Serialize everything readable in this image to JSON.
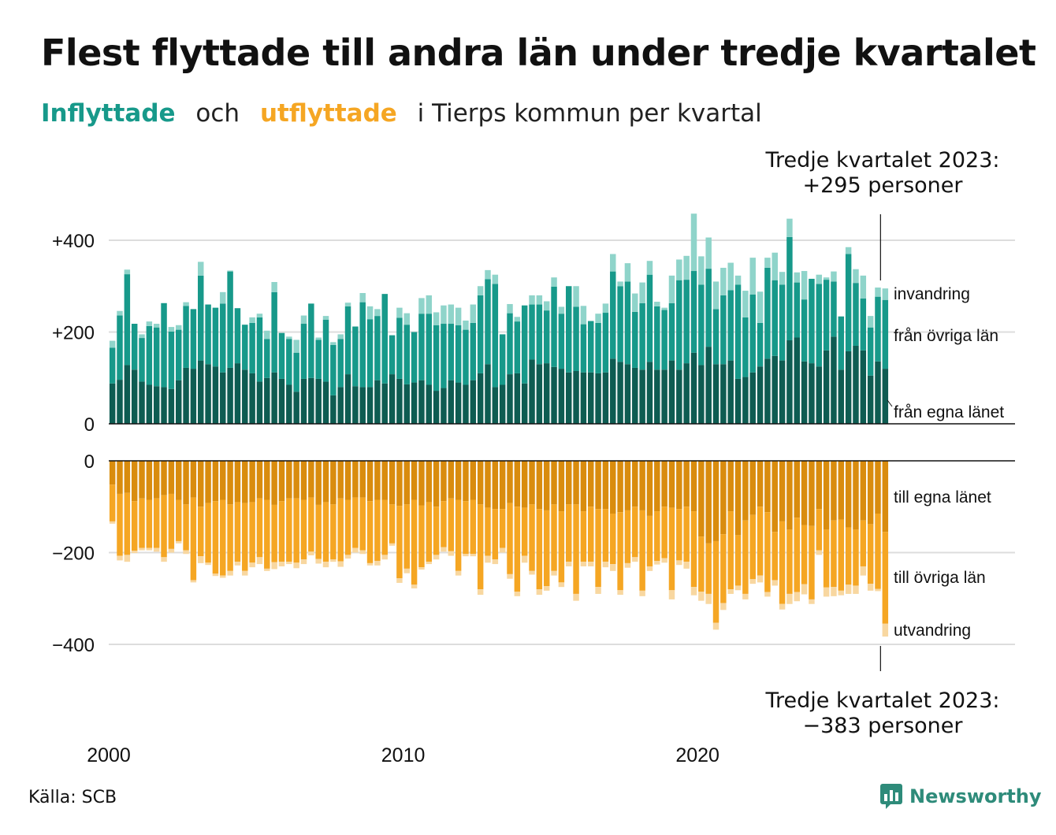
{
  "title": "Flest flyttade till andra län under tredje kvartalet",
  "subtitle": {
    "part1": "Inflyttade",
    "part2": "och",
    "part3": "utflyttade",
    "part4": "i Tierps kommun per kvartal"
  },
  "annotations": {
    "top_line1": "Tredje kvartalet 2023:",
    "top_line2": "+295 personer",
    "bottom_line1": "Tredje kvartalet 2023:",
    "bottom_line2": "−383 personer"
  },
  "source": "Källa: SCB",
  "logo_text": "Newsworthy",
  "colors": {
    "in_own": "#0e5c52",
    "in_other": "#17998a",
    "in_immig": "#8fd4ca",
    "out_own": "#d98c0e",
    "out_other": "#f5a623",
    "out_emig": "#f8d7a0",
    "inflyttade_text": "#17998a",
    "utflyttade_text": "#f5a623",
    "grid": "#dddddd",
    "logo": "#2e8b7a"
  },
  "chart_data": {
    "type": "bar",
    "stacked": true,
    "x_start": "2000 Q1",
    "x_end": "2023 Q3",
    "x_ticks": [
      "2000",
      "2010",
      "2020"
    ],
    "y_ticks_in": [
      "+400",
      "+200",
      "0"
    ],
    "y_ticks_out": [
      "0",
      "−200",
      "−400"
    ],
    "ylim_in": [
      0,
      480
    ],
    "ylim_out": [
      -420,
      0
    ],
    "series": [
      {
        "name": "från egna länet",
        "values": [
          88,
          96,
          128,
          118,
          92,
          85,
          82,
          80,
          76,
          95,
          122,
          120,
          138,
          130,
          125,
          112,
          122,
          132,
          118,
          110,
          92,
          100,
          112,
          98,
          85,
          70,
          98,
          100,
          98,
          92,
          62,
          80,
          108,
          82,
          80,
          80,
          95,
          88,
          108,
          98,
          86,
          90,
          95,
          85,
          72,
          78,
          95,
          90,
          85,
          95,
          110,
          130,
          80,
          85,
          108,
          110,
          88,
          140,
          130,
          132,
          124,
          120,
          112,
          115,
          112,
          112,
          110,
          112,
          142,
          135,
          130,
          122,
          118,
          135,
          118,
          118,
          138,
          118,
          132,
          155,
          128,
          168,
          130,
          130,
          138,
          98,
          102,
          112,
          125,
          142,
          148,
          138,
          182,
          188,
          136,
          132,
          125,
          160,
          190,
          118,
          158,
          170,
          160,
          105,
          136,
          120
        ]
      },
      {
        "name": "från övriga län",
        "values": [
          78,
          140,
          198,
          100,
          95,
          128,
          128,
          183,
          125,
          110,
          135,
          130,
          185,
          130,
          128,
          150,
          210,
          120,
          98,
          110,
          140,
          85,
          175,
          100,
          100,
          85,
          120,
          162,
          85,
          135,
          110,
          105,
          148,
          130,
          185,
          148,
          140,
          195,
          85,
          133,
          130,
          110,
          145,
          155,
          143,
          140,
          123,
          125,
          120,
          125,
          170,
          185,
          225,
          110,
          133,
          113,
          170,
          120,
          130,
          115,
          175,
          120,
          188,
          140,
          105,
          112,
          110,
          130,
          190,
          165,
          180,
          122,
          145,
          190,
          138,
          130,
          125,
          195,
          182,
          178,
          175,
          170,
          120,
          150,
          153,
          205,
          130,
          170,
          95,
          198,
          165,
          165,
          225,
          120,
          135,
          184,
          180,
          154,
          120,
          116,
          212,
          137,
          113,
          105,
          141,
          150
        ]
      },
      {
        "name": "invandring",
        "values": [
          15,
          10,
          10,
          0,
          8,
          10,
          8,
          0,
          10,
          10,
          8,
          0,
          30,
          0,
          0,
          25,
          2,
          0,
          0,
          12,
          8,
          18,
          22,
          0,
          5,
          28,
          18,
          0,
          5,
          8,
          6,
          10,
          8,
          0,
          20,
          28,
          15,
          0,
          0,
          22,
          25,
          0,
          34,
          40,
          28,
          40,
          42,
          38,
          20,
          40,
          20,
          20,
          20,
          0,
          20,
          10,
          0,
          20,
          20,
          20,
          20,
          15,
          0,
          45,
          40,
          0,
          20,
          20,
          38,
          10,
          40,
          40,
          45,
          30,
          10,
          5,
          60,
          45,
          52,
          125,
          62,
          68,
          60,
          60,
          60,
          20,
          58,
          80,
          68,
          22,
          60,
          28,
          40,
          22,
          62,
          0,
          20,
          5,
          22,
          0,
          15,
          30,
          50,
          25,
          20,
          25
        ]
      },
      {
        "name": "till egna länet",
        "values": [
          -52,
          -72,
          -70,
          -88,
          -82,
          -85,
          -82,
          -75,
          -72,
          -85,
          -95,
          -80,
          -100,
          -92,
          -88,
          -85,
          -95,
          -90,
          -92,
          -90,
          -82,
          -85,
          -96,
          -88,
          -82,
          -82,
          -85,
          -80,
          -96,
          -90,
          -95,
          -82,
          -85,
          -80,
          -80,
          -88,
          -85,
          -85,
          -95,
          -98,
          -95,
          -85,
          -97,
          -90,
          -100,
          -88,
          -82,
          -85,
          -88,
          -85,
          -95,
          -102,
          -105,
          -105,
          -92,
          -100,
          -102,
          -95,
          -105,
          -108,
          -95,
          -110,
          -95,
          -95,
          -110,
          -100,
          -105,
          -105,
          -115,
          -112,
          -108,
          -100,
          -108,
          -120,
          -110,
          -100,
          -102,
          -105,
          -100,
          -110,
          -165,
          -180,
          -175,
          -160,
          -110,
          -162,
          -130,
          -118,
          -100,
          -112,
          -155,
          -132,
          -150,
          -124,
          -140,
          -142,
          -105,
          -150,
          -130,
          -128,
          -145,
          -150,
          -130,
          -138,
          -115,
          -155
        ]
      },
      {
        "name": "till övriga län",
        "values": [
          -80,
          -135,
          -135,
          -108,
          -108,
          -105,
          -108,
          -135,
          -120,
          -90,
          -100,
          -180,
          -108,
          -130,
          -158,
          -165,
          -145,
          -130,
          -148,
          -132,
          -128,
          -150,
          -125,
          -132,
          -138,
          -140,
          -130,
          -118,
          -118,
          -130,
          -120,
          -137,
          -120,
          -110,
          -115,
          -135,
          -133,
          -120,
          -85,
          -158,
          -140,
          -185,
          -135,
          -130,
          -105,
          -100,
          -115,
          -155,
          -115,
          -118,
          -185,
          -105,
          -110,
          -85,
          -155,
          -185,
          -105,
          -145,
          -175,
          -165,
          -145,
          -155,
          -125,
          -195,
          -110,
          -120,
          -170,
          -115,
          -110,
          -170,
          -115,
          -110,
          -175,
          -110,
          -108,
          -112,
          -180,
          -112,
          -120,
          -165,
          -120,
          -110,
          -178,
          -150,
          -170,
          -110,
          -160,
          -140,
          -150,
          -174,
          -105,
          -180,
          -140,
          -162,
          -129,
          -160,
          -90,
          -126,
          -145,
          -155,
          -125,
          -122,
          -100,
          -130,
          -164,
          -200
        ]
      },
      {
        "name": "utvandring",
        "values": [
          -5,
          -10,
          -15,
          -5,
          -5,
          -5,
          -8,
          -10,
          -8,
          -5,
          -8,
          -5,
          -15,
          -5,
          -5,
          -5,
          -10,
          -8,
          -10,
          -10,
          -15,
          -5,
          -15,
          -10,
          -5,
          -12,
          -10,
          -8,
          -10,
          -12,
          -5,
          -12,
          -8,
          -10,
          -8,
          -5,
          -10,
          -10,
          -5,
          -10,
          -10,
          -8,
          -5,
          -5,
          -10,
          -10,
          -10,
          -10,
          -5,
          -5,
          -12,
          -15,
          -10,
          -10,
          -10,
          -10,
          -15,
          -8,
          -12,
          -10,
          -10,
          -10,
          -10,
          -15,
          -10,
          -10,
          -15,
          -12,
          -15,
          -10,
          -10,
          -10,
          -12,
          -10,
          -8,
          -10,
          -20,
          -10,
          -15,
          -18,
          -20,
          -22,
          -15,
          -15,
          -10,
          -10,
          -12,
          -10,
          -15,
          -10,
          -12,
          -12,
          -22,
          -20,
          -22,
          -10,
          -10,
          -20,
          -20,
          -10,
          -20,
          -18,
          -20,
          -15,
          -5,
          -28
        ]
      }
    ],
    "series_labels_in": [
      "invandring",
      "från övriga län",
      "från egna länet"
    ],
    "series_labels_out": [
      "till egna länet",
      "till övriga län",
      "utvandring"
    ]
  }
}
